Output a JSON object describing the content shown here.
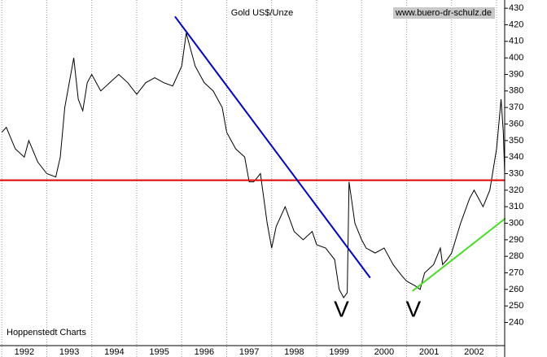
{
  "chart_data": {
    "type": "line",
    "title": "Gold US$/Unze",
    "source": "www.buero-dr-schulz.de",
    "footer": "Hoppenstedt Charts",
    "x": [
      1992.0,
      1992.1,
      1992.3,
      1992.5,
      1992.6,
      1992.8,
      1993.0,
      1993.2,
      1993.3,
      1993.4,
      1993.5,
      1993.6,
      1993.7,
      1993.8,
      1993.9,
      1994.0,
      1994.2,
      1994.4,
      1994.6,
      1994.8,
      1995.0,
      1995.2,
      1995.4,
      1995.6,
      1995.8,
      1996.0,
      1996.1,
      1996.3,
      1996.5,
      1996.7,
      1996.9,
      1997.0,
      1997.2,
      1997.4,
      1997.5,
      1997.6,
      1997.75,
      1997.9,
      1998.0,
      1998.1,
      1998.3,
      1998.5,
      1998.7,
      1998.9,
      1999.0,
      1999.2,
      1999.4,
      1999.5,
      1999.6,
      1999.68,
      1999.72,
      1999.85,
      2000.0,
      2000.1,
      2000.3,
      2000.5,
      2000.7,
      2000.9,
      2001.0,
      2001.2,
      2001.3,
      2001.4,
      2001.6,
      2001.75,
      2001.8,
      2001.9,
      2002.0,
      2002.2,
      2002.4,
      2002.5,
      2002.7,
      2002.85,
      2003.0,
      2003.1,
      2003.15,
      2003.18
    ],
    "series": [
      {
        "name": "Gold",
        "color": "#000000",
        "values": [
          355,
          358,
          345,
          340,
          350,
          337,
          330,
          328,
          340,
          370,
          385,
          400,
          375,
          368,
          385,
          390,
          380,
          385,
          390,
          385,
          378,
          385,
          388,
          385,
          383,
          395,
          415,
          395,
          385,
          380,
          370,
          355,
          345,
          340,
          325,
          325,
          330,
          300,
          285,
          298,
          310,
          295,
          290,
          295,
          287,
          285,
          278,
          260,
          255,
          258,
          325,
          300,
          290,
          285,
          282,
          285,
          275,
          268,
          265,
          262,
          260,
          270,
          275,
          285,
          275,
          278,
          282,
          300,
          315,
          320,
          310,
          320,
          345,
          375,
          355,
          330
        ]
      }
    ],
    "xlim": [
      1991.96,
      2003.18
    ],
    "xticks": [
      1992,
      1993,
      1994,
      1995,
      1996,
      1997,
      1998,
      1999,
      2000,
      2001,
      2002,
      2003
    ],
    "ylim": [
      226,
      435
    ],
    "yticks": [
      240,
      250,
      260,
      270,
      280,
      290,
      300,
      310,
      320,
      330,
      340,
      350,
      360,
      370,
      380,
      390,
      400,
      410,
      420,
      430
    ],
    "annotations": {
      "lines": [
        {
          "color": "#e00000",
          "x": [
            1991.96,
            2003.18
          ],
          "y": [
            326,
            326
          ]
        },
        {
          "color": "#0000d0",
          "x": [
            1995.85,
            2000.19
          ],
          "y": [
            425,
            267
          ]
        },
        {
          "color": "#44e020",
          "x": [
            2001.13,
            2003.2
          ],
          "y": [
            259,
            303
          ]
        }
      ],
      "texts": [
        {
          "text": "V",
          "color": "#e00000",
          "x": 1999.55,
          "y": 250
        },
        {
          "text": "V",
          "color": "#e00000",
          "x": 2001.15,
          "y": 250
        }
      ]
    }
  }
}
